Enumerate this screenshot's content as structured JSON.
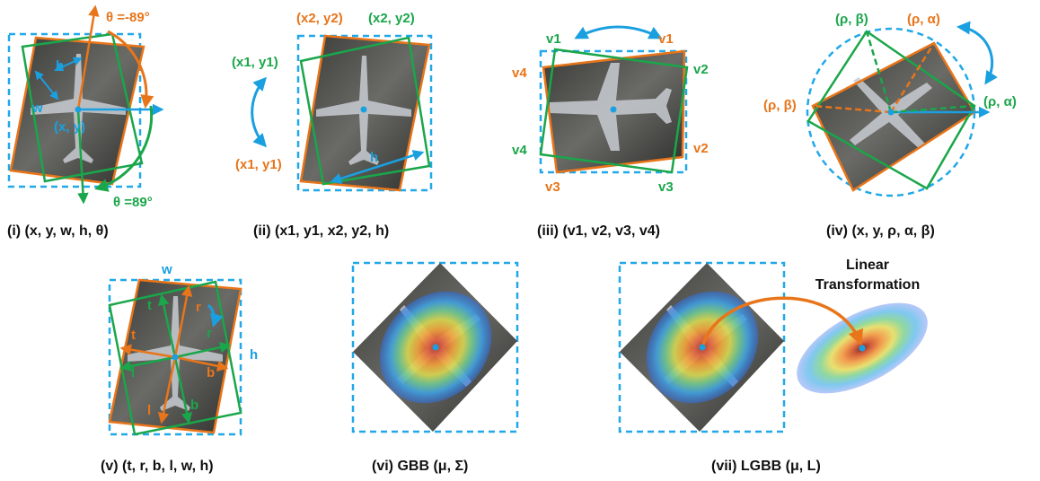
{
  "colors": {
    "orange": "#e8751a",
    "green": "#1aa64a",
    "blue": "#1aa0e0",
    "dashed": "#20a8e8"
  },
  "panel_i": {
    "caption": "(i) (x, y, w, h, θ)",
    "theta_neg": "θ =-89°",
    "theta_pos": "θ =89°",
    "h": "h",
    "w": "w",
    "center": "(x, y)"
  },
  "panel_ii": {
    "caption": "(ii) (x1, y1, x2, y2, h)",
    "x2y2_orange": "(x2, y2)",
    "x2y2_green": "(x2, y2)",
    "x1y1_green": "(x1, y1)",
    "x1y1_orange": "(x1, y1)",
    "h": "h"
  },
  "panel_iii": {
    "caption": "(iii) (v1, v2, v3, v4)",
    "v1_green": "v1",
    "v1_orange": "v1",
    "v2_green": "v2",
    "v2_orange": "v2",
    "v3_orange": "v3",
    "v3_green": "v3",
    "v4_orange": "v4",
    "v4_green": "v4"
  },
  "panel_iv": {
    "caption": "(iv) (x, y, ρ, α, β)",
    "rho_beta_green": "(ρ, β)",
    "rho_alpha_orange": "(ρ, α)",
    "rho_beta_orange": "(ρ, β)",
    "rho_alpha_green": "(ρ, α)"
  },
  "panel_v": {
    "caption": "(v) (t, r, b, l, w, h)",
    "w": "w",
    "h": "h",
    "t_green": "t",
    "r_orange": "r",
    "t_orange": "t",
    "r_green": "r",
    "l_green": "l",
    "b_orange": "b",
    "l_orange": "l",
    "b_green": "b"
  },
  "panel_vi": {
    "caption": "(vi) GBB (μ, Σ)"
  },
  "panel_vii": {
    "caption": "(vii) LGBB (μ, L)",
    "transform_line1": "Linear",
    "transform_line2": "Transformation"
  }
}
